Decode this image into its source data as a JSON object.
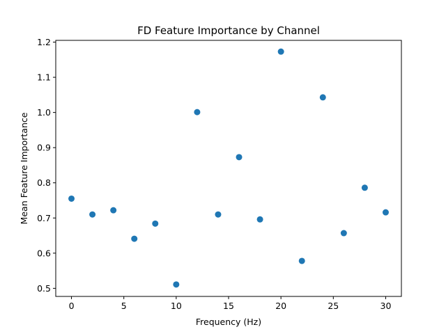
{
  "chart_data": {
    "type": "scatter",
    "title": "FD Feature Importance by Channel",
    "xlabel": "Frequency (Hz)",
    "ylabel": "Mean Feature Importance",
    "xlim": [
      -1.5,
      31.5
    ],
    "ylim": [
      0.477,
      1.205
    ],
    "xticks": [
      0,
      5,
      10,
      15,
      20,
      25,
      30
    ],
    "xtick_labels": [
      "0",
      "5",
      "10",
      "15",
      "20",
      "25",
      "30"
    ],
    "yticks": [
      0.5,
      0.6,
      0.7,
      0.8,
      0.9,
      1.0,
      1.1,
      1.2
    ],
    "ytick_labels": [
      "0.5",
      "0.6",
      "0.7",
      "0.8",
      "0.9",
      "1.0",
      "1.1",
      "1.2"
    ],
    "grid": false,
    "marker_color": "#1f77b4",
    "x": [
      0,
      2,
      4,
      6,
      8,
      10,
      12,
      14,
      16,
      18,
      20,
      22,
      24,
      26,
      28,
      30
    ],
    "y": [
      0.755,
      0.71,
      0.722,
      0.641,
      0.684,
      0.511,
      1.001,
      0.71,
      0.873,
      0.696,
      1.173,
      0.578,
      1.043,
      0.657,
      0.786,
      0.716
    ]
  }
}
